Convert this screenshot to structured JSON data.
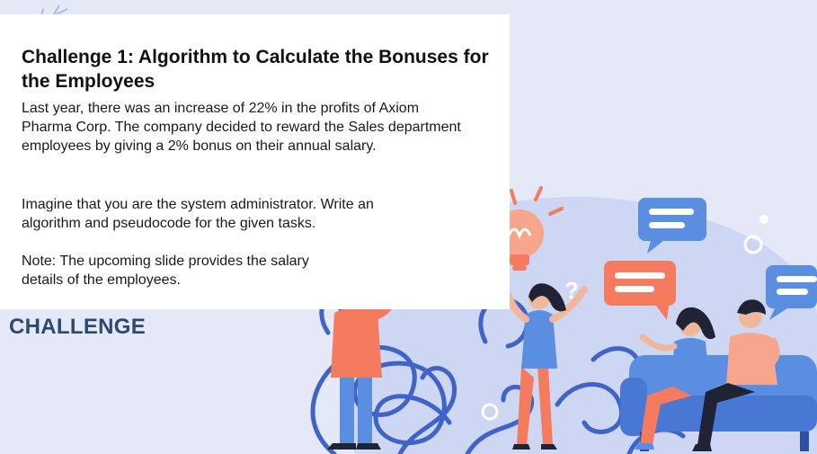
{
  "slide": {
    "title": "Challenge 1: Algorithm to Calculate the Bonuses for the Employees",
    "paragraph_1": "Last year, there was an increase of 22% in the profits of Axiom Pharma Corp. The company decided to reward the Sales department employees by giving a 2% bonus on their annual salary.",
    "paragraph_2": "Imagine that you are the system administrator. Write an algorithm and pseudocode for the given tasks.",
    "paragraph_3": "Note: The upcoming slide provides the salary details of the employees.",
    "section_label": "CHALLENGE"
  },
  "illustration": {
    "question_marks": [
      "?",
      "?",
      "?",
      "?"
    ],
    "colors": {
      "background": "#e4e8f7",
      "blob": "#cdd6f3",
      "scribble": "#3f63c9",
      "coral": "#f47b5e",
      "blue": "#5a8ee0",
      "dark": "#1f2333",
      "bulb": "#f7a58c",
      "label": "#2b4a6e"
    }
  }
}
